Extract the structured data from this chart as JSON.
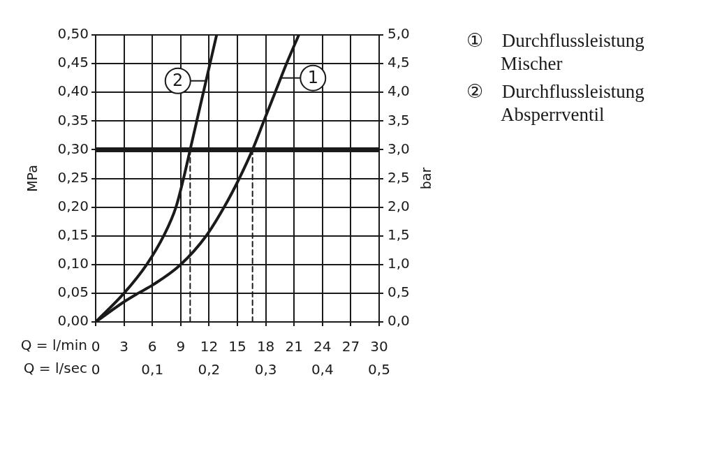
{
  "chart_data": {
    "type": "line",
    "xlabel": "Q = l/min",
    "x2label": "Q = l/sec",
    "ylabel": "MPa",
    "y2label": "bar",
    "xlim": [
      0,
      30
    ],
    "xticks": [
      0,
      3,
      6,
      9,
      12,
      15,
      18,
      21,
      24,
      27,
      30
    ],
    "x2lim": [
      0,
      0.5
    ],
    "x2ticks": [
      0,
      {
        "value": 0.1,
        "label": "0,1"
      },
      {
        "value": 0.2,
        "label": "0,2"
      },
      {
        "value": 0.3,
        "label": "0,3"
      },
      {
        "value": 0.4,
        "label": "0,4"
      },
      {
        "value": 0.5,
        "label": "0,5"
      }
    ],
    "ylim": [
      0,
      0.5
    ],
    "yticks": [
      {
        "value": 0,
        "label": "0,00"
      },
      {
        "value": 0.05,
        "label": "0,05"
      },
      {
        "value": 0.1,
        "label": "0,10"
      },
      {
        "value": 0.15,
        "label": "0,15"
      },
      {
        "value": 0.2,
        "label": "0,20"
      },
      {
        "value": 0.25,
        "label": "0,25"
      },
      {
        "value": 0.3,
        "label": "0,30"
      },
      {
        "value": 0.35,
        "label": "0,35"
      },
      {
        "value": 0.4,
        "label": "0,40"
      },
      {
        "value": 0.45,
        "label": "0,45"
      },
      {
        "value": 0.5,
        "label": "0,50"
      }
    ],
    "y2lim": [
      0,
      5
    ],
    "y2ticks": [
      {
        "value": 0,
        "label": "0,0"
      },
      {
        "value": 0.5,
        "label": "0,5"
      },
      {
        "value": 1,
        "label": "1,0"
      },
      {
        "value": 1.5,
        "label": "1,5"
      },
      {
        "value": 2,
        "label": "2,0"
      },
      {
        "value": 2.5,
        "label": "2,5"
      },
      {
        "value": 3,
        "label": "3,0"
      },
      {
        "value": 3.5,
        "label": "3,5"
      },
      {
        "value": 4,
        "label": "4,0"
      },
      {
        "value": 4.5,
        "label": "4,5"
      },
      {
        "value": 5,
        "label": "5,0"
      }
    ],
    "grid": true,
    "legend": "right",
    "series": [
      {
        "name": "① Durchflussleistung Mischer",
        "color": "#1a1a1a",
        "x": [
          0,
          3,
          4.5,
          6,
          9,
          11.7,
          13.6,
          15.2,
          16.6,
          17.8,
          19,
          20.2,
          21.5
        ],
        "values": [
          0,
          0.035,
          0.05,
          0.064,
          0.1,
          0.15,
          0.2,
          0.25,
          0.3,
          0.35,
          0.4,
          0.45,
          0.5
        ]
      },
      {
        "name": "② Durchflussleistung Absperrventil",
        "color": "#1a1a1a",
        "x": [
          0,
          3,
          5.4,
          7.2,
          8.5,
          9.3,
          10,
          10.7,
          11.4,
          12.1,
          12.8
        ],
        "values": [
          0,
          0.05,
          0.1,
          0.15,
          0.2,
          0.25,
          0.3,
          0.35,
          0.4,
          0.45,
          0.5
        ]
      },
      {
        "type": "line",
        "line_style": "dashed",
        "color": "#1a1a1a",
        "x": [
          16.6,
          16.6
        ],
        "values": [
          0,
          0.3
        ]
      },
      {
        "type": "line",
        "line_style": "dashed",
        "color": "#1a1a1a",
        "x": [
          10,
          10
        ],
        "values": [
          0,
          0.3
        ]
      }
    ],
    "ref_lines": [
      {
        "axis": "y",
        "value": 0.3,
        "color": "#1a1a1a"
      }
    ],
    "annotations": [
      {
        "text": "1",
        "x": 23,
        "y": 0.425
      },
      {
        "text": "2",
        "x": 8.7,
        "y": 0.42
      }
    ]
  }
}
